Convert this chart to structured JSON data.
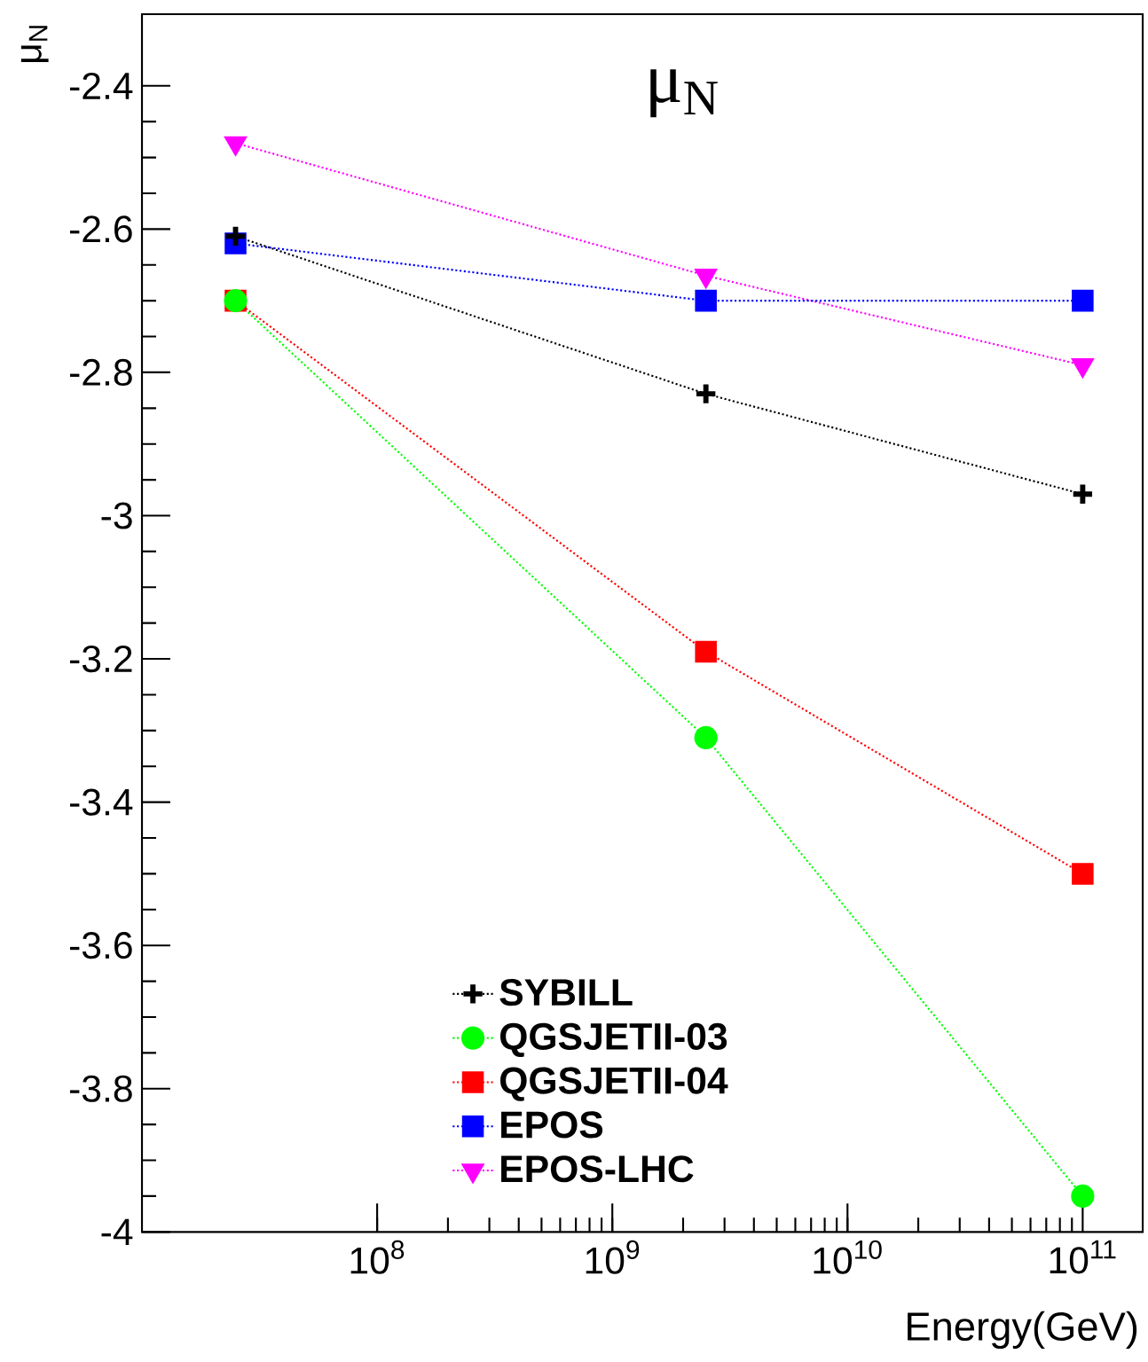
{
  "chart_data": {
    "type": "line",
    "title": "μ$_{N}$",
    "xlabel": "Energy(GeV)",
    "ylabel": "μ$_{N}$",
    "x": [
      25000000,
      2500000000,
      100000000000
    ],
    "log": "x",
    "xlim": [
      10000000,
      180000000000
    ],
    "xticks": [
      {
        "value": 100000000,
        "label": "10$^{8}$"
      },
      {
        "value": 1000000000,
        "label": "10$^{9}$"
      },
      {
        "value": 10000000000,
        "label": "10$^{10}$"
      },
      {
        "value": 100000000000,
        "label": "10$^{11}$"
      }
    ],
    "ylim": [
      -4,
      -2.3
    ],
    "yticks": [
      -4,
      -3.8,
      -3.6,
      -3.4,
      -3.2,
      -3,
      -2.8,
      -2.6,
      -2.4
    ],
    "legend": "bottom",
    "line_style": "dotted",
    "series": [
      {
        "name": "SYBILL",
        "color": "#000000",
        "marker": "cross",
        "values": [
          -2.61,
          -2.83,
          -2.97
        ]
      },
      {
        "name": "QGSJETII-03",
        "color": "#00ff00",
        "marker": "circle",
        "values": [
          -2.7,
          -3.31,
          -3.95
        ]
      },
      {
        "name": "QGSJETII-04",
        "color": "#ff0000",
        "marker": "square",
        "values": [
          -2.7,
          -3.19,
          -3.5
        ]
      },
      {
        "name": "EPOS",
        "color": "#0000ff",
        "marker": "square",
        "values": [
          -2.62,
          -2.7,
          -2.7
        ]
      },
      {
        "name": "EPOS-LHC",
        "color": "#ff00ff",
        "marker": "triangle-down",
        "values": [
          -2.48,
          -2.665,
          -2.79
        ]
      }
    ]
  }
}
